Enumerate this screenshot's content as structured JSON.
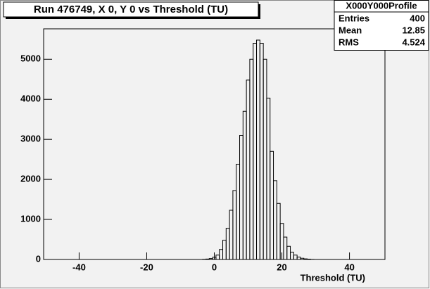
{
  "chart_data": {
    "type": "histogram",
    "title": "Run 476749, X 0, Y 0 vs Threshold (TU)",
    "x_label": "Threshold (TU)",
    "bins": [
      -3.5,
      -2.5,
      -1.5,
      -0.5,
      0.5,
      1.5,
      2.5,
      3.5,
      4.5,
      5.5,
      6.5,
      7.5,
      8.5,
      9.5,
      10.5,
      11.5,
      12.5,
      13.5,
      14.5,
      15.5,
      16.5,
      17.5,
      18.5,
      19.5,
      20.5,
      21.5,
      22.5,
      23.5,
      24.5,
      25.5,
      26.5,
      27.5,
      28.5,
      29.5
    ],
    "values": [
      5,
      10,
      25,
      55,
      110,
      250,
      480,
      780,
      1230,
      1720,
      2380,
      3100,
      3700,
      4480,
      5000,
      5400,
      5480,
      5400,
      5000,
      4030,
      2700,
      1970,
      1400,
      900,
      560,
      330,
      180,
      110,
      60,
      30,
      15,
      8,
      3
    ],
    "color": "#000000",
    "xlim": [
      -50.5,
      50.5
    ],
    "xticks": [
      -40,
      -20,
      0,
      20,
      40
    ],
    "ylim": [
      0,
      5760
    ],
    "yticks": [
      0,
      1000,
      2000,
      3000,
      4000,
      5000
    ],
    "stats": {
      "title": "X000Y000Profile",
      "rows": [
        {
          "label": "Entries",
          "value": 400
        },
        {
          "label": "Mean",
          "value": 12.85
        },
        {
          "label": "RMS",
          "value": 4.524
        }
      ]
    }
  }
}
